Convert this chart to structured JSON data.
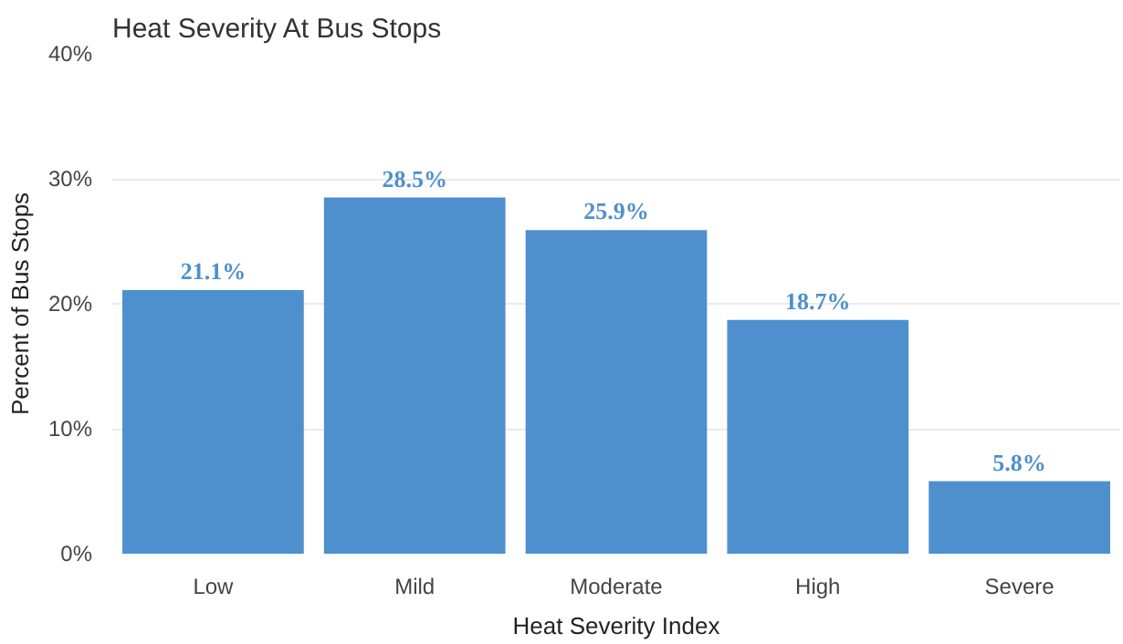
{
  "chart_data": {
    "type": "bar",
    "title": "Heat Severity At Bus Stops",
    "xlabel": "Heat Severity Index",
    "ylabel": "Percent of Bus Stops",
    "categories": [
      "Low",
      "Mild",
      "Moderate",
      "High",
      "Severe"
    ],
    "values": [
      21.1,
      28.5,
      25.9,
      18.7,
      5.8
    ],
    "value_labels": [
      "21.1%",
      "28.5%",
      "25.9%",
      "18.7%",
      "5.8%"
    ],
    "color": "#4e90cd",
    "ylim": [
      0,
      40
    ],
    "yticks": [
      {
        "value": 0,
        "label": "0%"
      },
      {
        "value": 10,
        "label": "10%"
      },
      {
        "value": 20,
        "label": "20%"
      },
      {
        "value": 30,
        "label": "30%"
      },
      {
        "value": 40,
        "label": "40%"
      }
    ],
    "grid": "y"
  }
}
